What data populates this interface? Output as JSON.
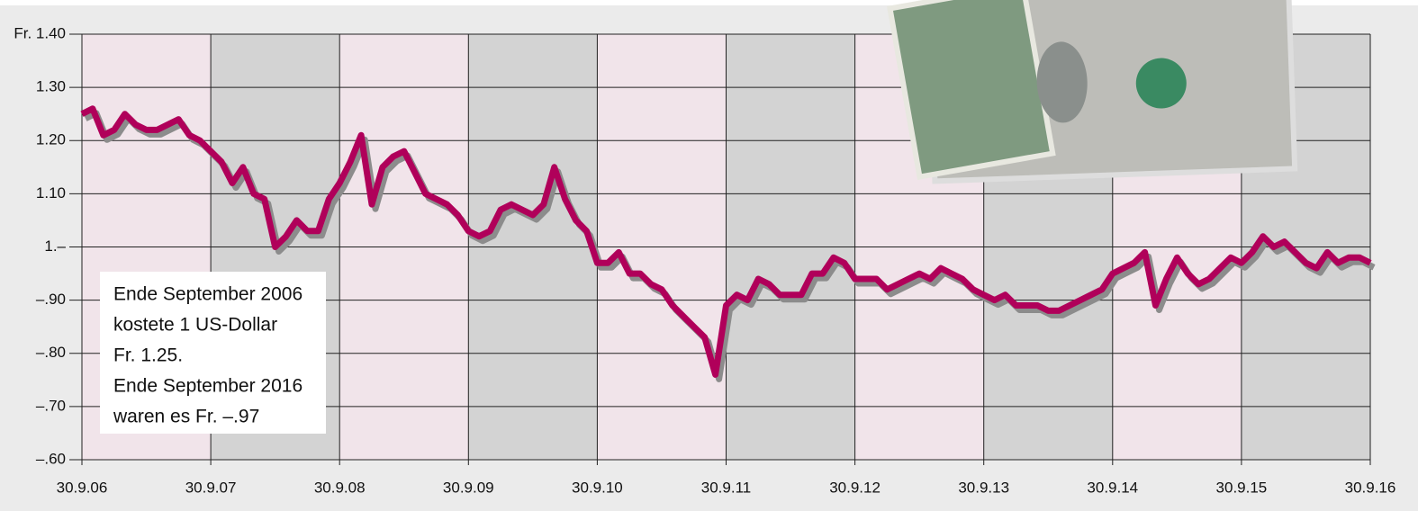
{
  "chart_data": {
    "type": "line",
    "color": "#b0005a",
    "categories": [
      "30.9.06",
      null,
      null,
      null,
      null,
      null,
      null,
      null,
      null,
      null,
      null,
      null,
      "30.9.07",
      null,
      null,
      null,
      null,
      null,
      null,
      null,
      null,
      null,
      null,
      null,
      "30.9.08",
      null,
      null,
      null,
      null,
      null,
      null,
      null,
      null,
      null,
      null,
      null,
      "30.9.09",
      null,
      null,
      null,
      null,
      null,
      null,
      null,
      null,
      null,
      null,
      null,
      "30.9.10",
      null,
      null,
      null,
      null,
      null,
      null,
      null,
      null,
      null,
      null,
      null,
      "30.9.11",
      null,
      null,
      null,
      null,
      null,
      null,
      null,
      null,
      null,
      null,
      null,
      "30.9.12",
      null,
      null,
      null,
      null,
      null,
      null,
      null,
      null,
      null,
      null,
      null,
      "30.9.13",
      null,
      null,
      null,
      null,
      null,
      null,
      null,
      null,
      null,
      null,
      null,
      "30.9.14",
      null,
      null,
      null,
      null,
      null,
      null,
      null,
      null,
      null,
      null,
      null,
      "30.9.15",
      null,
      null,
      null,
      null,
      null,
      null,
      null,
      null,
      null,
      null,
      null,
      "30.9.16"
    ],
    "values": [
      1.25,
      1.26,
      1.21,
      1.22,
      1.25,
      1.23,
      1.22,
      1.22,
      1.23,
      1.24,
      1.21,
      1.2,
      1.18,
      1.16,
      1.12,
      1.15,
      1.1,
      1.09,
      1.0,
      1.02,
      1.05,
      1.03,
      1.03,
      1.09,
      1.12,
      1.16,
      1.21,
      1.08,
      1.15,
      1.17,
      1.18,
      1.14,
      1.1,
      1.09,
      1.08,
      1.06,
      1.03,
      1.02,
      1.03,
      1.07,
      1.08,
      1.07,
      1.06,
      1.08,
      1.15,
      1.09,
      1.05,
      1.03,
      0.97,
      0.97,
      0.99,
      0.95,
      0.95,
      0.93,
      0.92,
      0.89,
      0.87,
      0.85,
      0.83,
      0.76,
      0.89,
      0.91,
      0.9,
      0.94,
      0.93,
      0.91,
      0.91,
      0.91,
      0.95,
      0.95,
      0.98,
      0.97,
      0.94,
      0.94,
      0.94,
      0.92,
      0.93,
      0.94,
      0.95,
      0.94,
      0.96,
      0.95,
      0.94,
      0.92,
      0.91,
      0.9,
      0.91,
      0.89,
      0.89,
      0.89,
      0.88,
      0.88,
      0.89,
      0.9,
      0.91,
      0.92,
      0.95,
      0.96,
      0.97,
      0.99,
      0.89,
      0.94,
      0.98,
      0.95,
      0.93,
      0.94,
      0.96,
      0.98,
      0.97,
      0.99,
      1.02,
      1.0,
      1.01,
      0.99,
      0.97,
      0.96,
      0.99,
      0.97,
      0.98,
      0.98,
      0.97
    ],
    "ylim": [
      0.6,
      1.4
    ],
    "yticks": [
      {
        "value": 0.6,
        "label": "–.60"
      },
      {
        "value": 0.7,
        "label": "–.70"
      },
      {
        "value": 0.8,
        "label": "–.80"
      },
      {
        "value": 0.9,
        "label": "–.90"
      },
      {
        "value": 1.0,
        "label": "1.–"
      },
      {
        "value": 1.1,
        "label": "1.10"
      },
      {
        "value": 1.2,
        "label": "1.20"
      },
      {
        "value": 1.3,
        "label": "1.30"
      },
      {
        "value": 1.4,
        "label": "Fr. 1.40"
      }
    ],
    "grid": true,
    "annotation": [
      "Ende September 2006",
      "kostete 1 US-Dollar",
      "Fr. 1.25.",
      "Ende September 2016",
      "waren es Fr. –.97"
    ]
  }
}
